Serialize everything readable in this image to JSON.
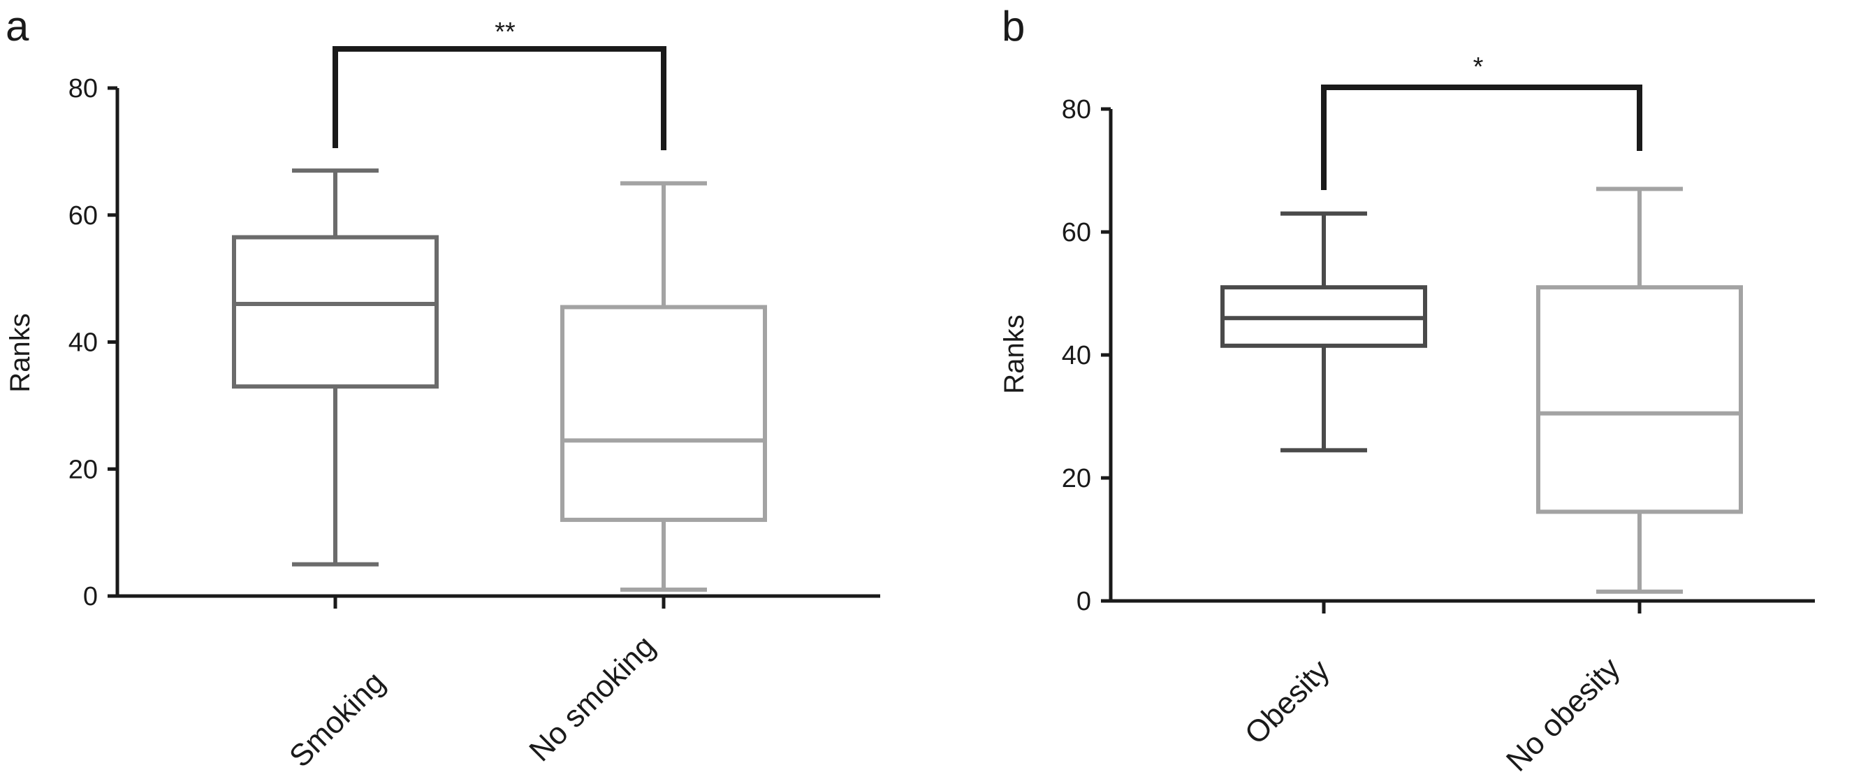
{
  "panels": [
    {
      "panel_label": "a",
      "ylabel": "Ranks",
      "significance": "**",
      "yticks": [
        "0",
        "20",
        "40",
        "60",
        "80"
      ],
      "categories": [
        "Smoking",
        "No smoking"
      ]
    },
    {
      "panel_label": "b",
      "ylabel": "Ranks",
      "significance": "*",
      "yticks": [
        "0",
        "20",
        "40",
        "60",
        "80"
      ],
      "categories": [
        "Obesity",
        "No obesity"
      ]
    }
  ],
  "chart_data": [
    {
      "type": "box",
      "panel": "a",
      "title": "",
      "xlabel": "",
      "ylabel": "Ranks",
      "ylim": [
        0,
        80
      ],
      "yticks": [
        0,
        20,
        40,
        60,
        80
      ],
      "categories": [
        "Smoking",
        "No smoking"
      ],
      "boxes": [
        {
          "category": "Smoking",
          "min": 5,
          "q1": 33,
          "median": 46,
          "q3": 56.5,
          "max": 67,
          "color": "#6b6b6b"
        },
        {
          "category": "No smoking",
          "min": 1,
          "q1": 12,
          "median": 24.5,
          "q3": 45.5,
          "max": 65,
          "color": "#a3a3a3"
        }
      ],
      "significance": {
        "label": "**",
        "between": [
          "Smoking",
          "No smoking"
        ]
      }
    },
    {
      "type": "box",
      "panel": "b",
      "title": "",
      "xlabel": "",
      "ylabel": "Ranks",
      "ylim": [
        0,
        80
      ],
      "yticks": [
        0,
        20,
        40,
        60,
        80
      ],
      "categories": [
        "Obesity",
        "No obesity"
      ],
      "boxes": [
        {
          "category": "Obesity",
          "min": 24.5,
          "q1": 41.5,
          "median": 46,
          "q3": 51,
          "max": 63,
          "color": "#4a4a4a"
        },
        {
          "category": "No obesity",
          "min": 1.5,
          "q1": 14.5,
          "median": 30.5,
          "q3": 51,
          "max": 67,
          "color": "#a3a3a3"
        }
      ],
      "significance": {
        "label": "*",
        "between": [
          "Obesity",
          "No obesity"
        ]
      }
    }
  ]
}
